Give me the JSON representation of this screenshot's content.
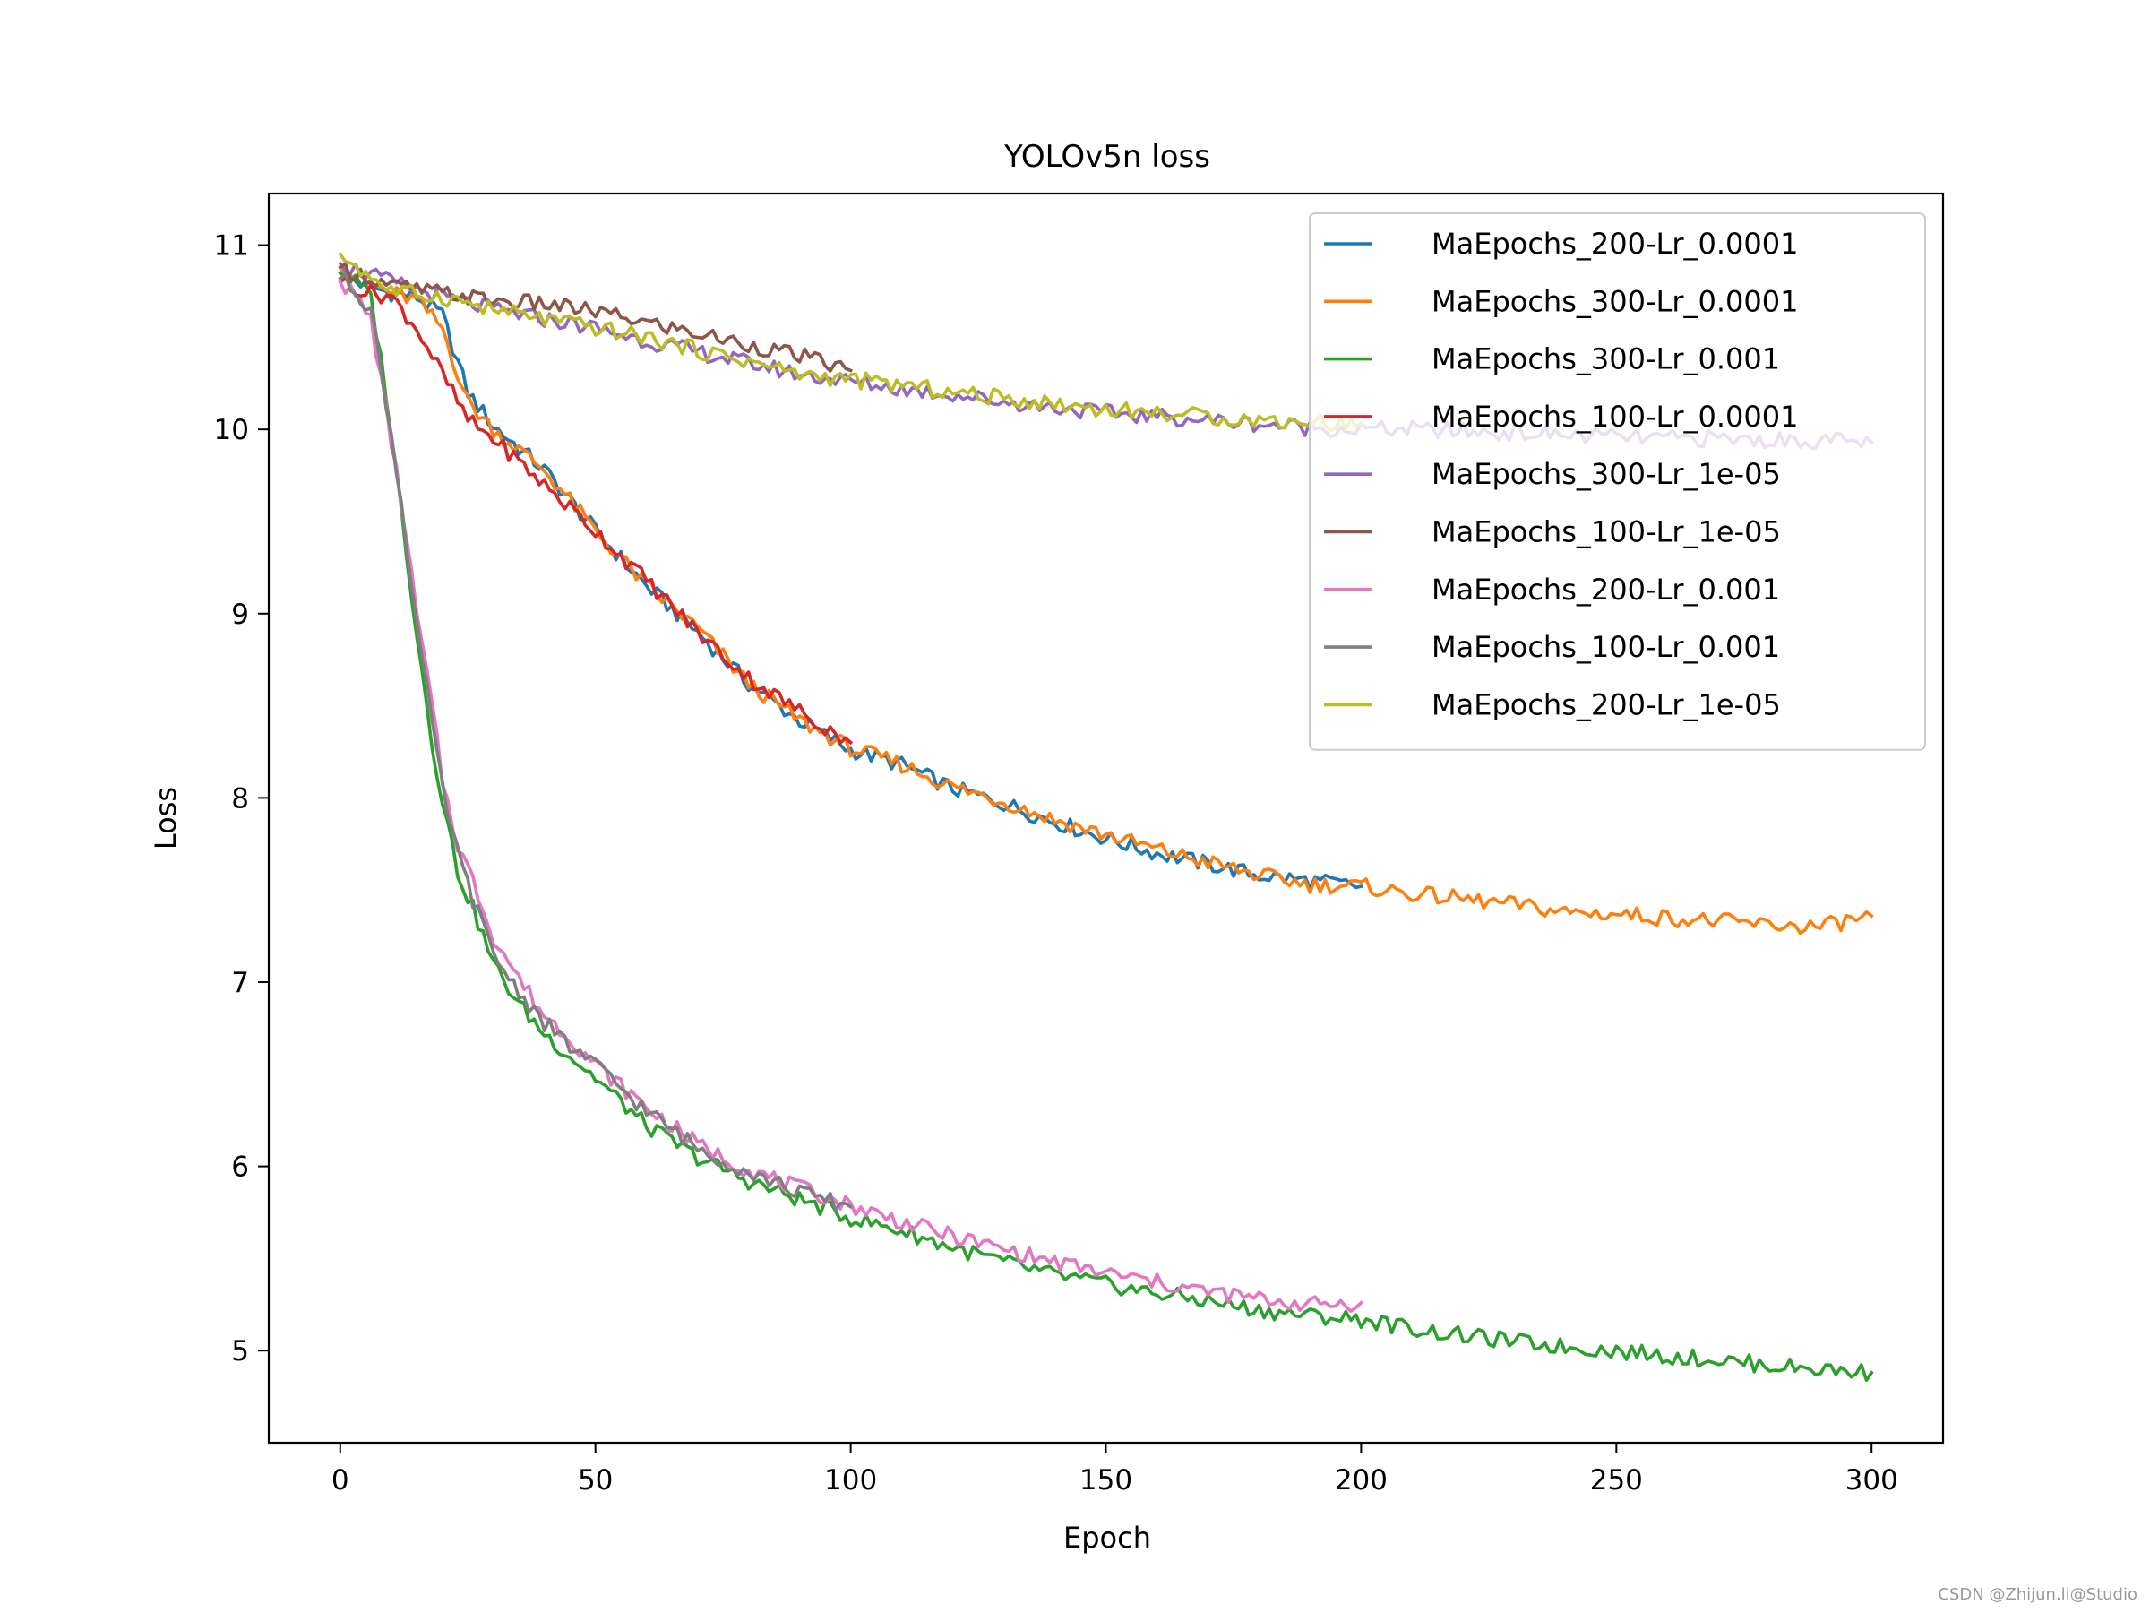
{
  "chart_data": {
    "type": "line",
    "title": "YOLOv5n loss",
    "xlabel": "Epoch",
    "ylabel": "Loss",
    "xlim": [
      -14,
      314
    ],
    "ylim": [
      4.5,
      11.28
    ],
    "xticks": [
      0,
      50,
      100,
      150,
      200,
      250,
      300
    ],
    "yticks": [
      5,
      6,
      7,
      8,
      9,
      10,
      11
    ],
    "grid": false,
    "legend_position": "top-right",
    "series": [
      {
        "name": "MaEpochs_200-Lr_0.0001",
        "color": "#1f77b4",
        "points": [
          [
            0,
            10.85
          ],
          [
            5,
            10.78
          ],
          [
            10,
            10.74
          ],
          [
            15,
            10.72
          ],
          [
            20,
            10.62
          ],
          [
            25,
            10.2
          ],
          [
            30,
            10.02
          ],
          [
            40,
            9.78
          ],
          [
            50,
            9.45
          ],
          [
            60,
            9.15
          ],
          [
            70,
            8.9
          ],
          [
            80,
            8.62
          ],
          [
            90,
            8.42
          ],
          [
            100,
            8.26
          ],
          [
            110,
            8.18
          ],
          [
            120,
            8.05
          ],
          [
            130,
            7.97
          ],
          [
            140,
            7.87
          ],
          [
            150,
            7.78
          ],
          [
            160,
            7.7
          ],
          [
            170,
            7.64
          ],
          [
            180,
            7.58
          ],
          [
            190,
            7.55
          ],
          [
            200,
            7.52
          ]
        ]
      },
      {
        "name": "MaEpochs_300-Lr_0.0001",
        "color": "#ff7f0e",
        "points": [
          [
            0,
            10.88
          ],
          [
            5,
            10.8
          ],
          [
            10,
            10.74
          ],
          [
            15,
            10.7
          ],
          [
            20,
            10.55
          ],
          [
            25,
            10.15
          ],
          [
            30,
            10.0
          ],
          [
            40,
            9.78
          ],
          [
            50,
            9.45
          ],
          [
            60,
            9.15
          ],
          [
            70,
            8.92
          ],
          [
            80,
            8.62
          ],
          [
            90,
            8.42
          ],
          [
            100,
            8.27
          ],
          [
            110,
            8.18
          ],
          [
            120,
            8.06
          ],
          [
            130,
            7.98
          ],
          [
            140,
            7.88
          ],
          [
            150,
            7.8
          ],
          [
            160,
            7.72
          ],
          [
            170,
            7.65
          ],
          [
            180,
            7.58
          ],
          [
            190,
            7.53
          ],
          [
            200,
            7.52
          ],
          [
            210,
            7.48
          ],
          [
            220,
            7.45
          ],
          [
            230,
            7.42
          ],
          [
            240,
            7.38
          ],
          [
            250,
            7.37
          ],
          [
            260,
            7.35
          ],
          [
            270,
            7.33
          ],
          [
            280,
            7.31
          ],
          [
            290,
            7.3
          ],
          [
            300,
            7.36
          ]
        ]
      },
      {
        "name": "MaEpochs_300-Lr_0.001",
        "color": "#2ca02c",
        "points": [
          [
            0,
            10.85
          ],
          [
            3,
            10.8
          ],
          [
            6,
            10.72
          ],
          [
            9,
            10.2
          ],
          [
            12,
            9.55
          ],
          [
            15,
            8.9
          ],
          [
            18,
            8.3
          ],
          [
            20,
            8.0
          ],
          [
            23,
            7.6
          ],
          [
            26,
            7.4
          ],
          [
            30,
            7.1
          ],
          [
            35,
            6.88
          ],
          [
            40,
            6.72
          ],
          [
            45,
            6.6
          ],
          [
            50,
            6.48
          ],
          [
            60,
            6.22
          ],
          [
            70,
            6.05
          ],
          [
            80,
            5.92
          ],
          [
            90,
            5.82
          ],
          [
            100,
            5.72
          ],
          [
            110,
            5.65
          ],
          [
            120,
            5.56
          ],
          [
            130,
            5.48
          ],
          [
            140,
            5.41
          ],
          [
            150,
            5.36
          ],
          [
            160,
            5.31
          ],
          [
            170,
            5.27
          ],
          [
            180,
            5.22
          ],
          [
            190,
            5.19
          ],
          [
            200,
            5.17
          ],
          [
            210,
            5.12
          ],
          [
            220,
            5.08
          ],
          [
            230,
            5.05
          ],
          [
            240,
            5.02
          ],
          [
            250,
            5.0
          ],
          [
            260,
            4.97
          ],
          [
            270,
            4.95
          ],
          [
            280,
            4.92
          ],
          [
            290,
            4.9
          ],
          [
            300,
            4.88
          ]
        ]
      },
      {
        "name": "MaEpochs_100-Lr_0.0001",
        "color": "#d62728",
        "points": [
          [
            0,
            10.8
          ],
          [
            5,
            10.75
          ],
          [
            10,
            10.72
          ],
          [
            15,
            10.55
          ],
          [
            20,
            10.3
          ],
          [
            25,
            10.05
          ],
          [
            30,
            9.95
          ],
          [
            40,
            9.7
          ],
          [
            50,
            9.45
          ],
          [
            60,
            9.18
          ],
          [
            70,
            8.9
          ],
          [
            80,
            8.65
          ],
          [
            90,
            8.47
          ],
          [
            100,
            8.3
          ]
        ]
      },
      {
        "name": "MaEpochs_300-Lr_1e-05",
        "color": "#9467bd",
        "points": [
          [
            0,
            10.9
          ],
          [
            10,
            10.8
          ],
          [
            20,
            10.72
          ],
          [
            30,
            10.65
          ],
          [
            40,
            10.6
          ],
          [
            50,
            10.55
          ],
          [
            60,
            10.48
          ],
          [
            70,
            10.42
          ],
          [
            80,
            10.36
          ],
          [
            90,
            10.3
          ],
          [
            100,
            10.26
          ],
          [
            110,
            10.22
          ],
          [
            120,
            10.19
          ],
          [
            130,
            10.15
          ],
          [
            140,
            10.12
          ],
          [
            150,
            10.09
          ],
          [
            160,
            10.07
          ],
          [
            170,
            10.05
          ],
          [
            180,
            10.03
          ],
          [
            190,
            10.01
          ],
          [
            200,
            10.0
          ],
          [
            210,
            10.0
          ],
          [
            220,
            9.99
          ],
          [
            230,
            9.98
          ],
          [
            240,
            9.97
          ],
          [
            250,
            9.96
          ],
          [
            260,
            9.95
          ],
          [
            270,
            9.95
          ],
          [
            280,
            9.94
          ],
          [
            290,
            9.94
          ],
          [
            300,
            9.93
          ]
        ]
      },
      {
        "name": "MaEpochs_100-Lr_1e-05",
        "color": "#8c564b",
        "points": [
          [
            0,
            10.88
          ],
          [
            10,
            10.78
          ],
          [
            20,
            10.74
          ],
          [
            30,
            10.7
          ],
          [
            40,
            10.68
          ],
          [
            50,
            10.64
          ],
          [
            60,
            10.58
          ],
          [
            70,
            10.52
          ],
          [
            80,
            10.46
          ],
          [
            90,
            10.4
          ],
          [
            100,
            10.32
          ]
        ]
      },
      {
        "name": "MaEpochs_200-Lr_0.001",
        "color": "#e377c2",
        "points": [
          [
            0,
            10.8
          ],
          [
            3,
            10.72
          ],
          [
            6,
            10.6
          ],
          [
            9,
            10.1
          ],
          [
            12,
            9.6
          ],
          [
            15,
            9.0
          ],
          [
            18,
            8.5
          ],
          [
            20,
            8.1
          ],
          [
            23,
            7.75
          ],
          [
            26,
            7.55
          ],
          [
            30,
            7.25
          ],
          [
            35,
            7.02
          ],
          [
            40,
            6.82
          ],
          [
            45,
            6.7
          ],
          [
            50,
            6.55
          ],
          [
            60,
            6.32
          ],
          [
            70,
            6.12
          ],
          [
            80,
            5.98
          ],
          [
            90,
            5.88
          ],
          [
            100,
            5.79
          ],
          [
            110,
            5.7
          ],
          [
            120,
            5.62
          ],
          [
            130,
            5.55
          ],
          [
            140,
            5.48
          ],
          [
            150,
            5.42
          ],
          [
            160,
            5.37
          ],
          [
            170,
            5.32
          ],
          [
            180,
            5.28
          ],
          [
            190,
            5.25
          ],
          [
            200,
            5.26
          ]
        ]
      },
      {
        "name": "MaEpochs_100-Lr_0.001",
        "color": "#7f7f7f",
        "points": [
          [
            0,
            10.82
          ],
          [
            3,
            10.76
          ],
          [
            6,
            10.65
          ],
          [
            9,
            10.15
          ],
          [
            12,
            9.6
          ],
          [
            15,
            8.95
          ],
          [
            18,
            8.4
          ],
          [
            20,
            8.05
          ],
          [
            23,
            7.7
          ],
          [
            26,
            7.45
          ],
          [
            30,
            7.15
          ],
          [
            35,
            6.95
          ],
          [
            40,
            6.78
          ],
          [
            45,
            6.65
          ],
          [
            50,
            6.55
          ],
          [
            60,
            6.3
          ],
          [
            70,
            6.1
          ],
          [
            80,
            5.97
          ],
          [
            90,
            5.86
          ],
          [
            100,
            5.78
          ]
        ]
      },
      {
        "name": "MaEpochs_200-Lr_1e-05",
        "color": "#bcbd22",
        "points": [
          [
            0,
            10.95
          ],
          [
            10,
            10.75
          ],
          [
            20,
            10.72
          ],
          [
            30,
            10.65
          ],
          [
            40,
            10.6
          ],
          [
            50,
            10.55
          ],
          [
            60,
            10.5
          ],
          [
            70,
            10.43
          ],
          [
            80,
            10.37
          ],
          [
            90,
            10.3
          ],
          [
            100,
            10.27
          ],
          [
            110,
            10.24
          ],
          [
            120,
            10.2
          ],
          [
            130,
            10.17
          ],
          [
            140,
            10.14
          ],
          [
            150,
            10.11
          ],
          [
            160,
            10.09
          ],
          [
            170,
            10.07
          ],
          [
            180,
            10.05
          ],
          [
            190,
            10.04
          ],
          [
            200,
            10.03
          ]
        ]
      }
    ]
  },
  "watermark": "CSDN @Zhijun.li@Studio"
}
